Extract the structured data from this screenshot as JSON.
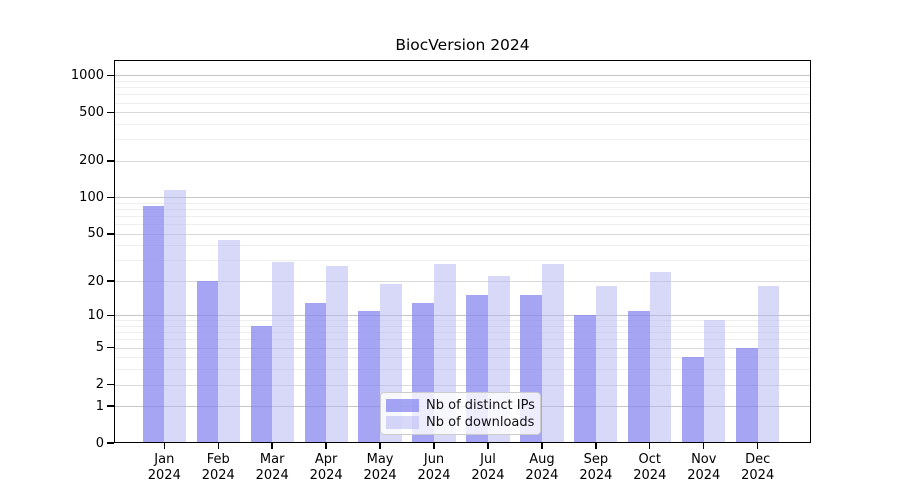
{
  "chart_data": {
    "type": "bar",
    "title": "BiocVersion 2024",
    "categories": [
      "Jan",
      "Feb",
      "Mar",
      "Apr",
      "May",
      "Jun",
      "Jul",
      "Aug",
      "Sep",
      "Oct",
      "Nov",
      "Dec"
    ],
    "year": "2024",
    "series": [
      {
        "name": "Nb of distinct IPs",
        "color": "rgba(130,130,240,0.72)",
        "color_over_white": "#a8a8f5",
        "values": [
          85,
          20,
          8,
          13,
          11,
          13,
          15,
          15,
          10,
          11,
          4,
          5
        ]
      },
      {
        "name": "Nb of downloads",
        "color": "rgba(177,177,243,0.5)",
        "color_over_white": "#d9d9f9",
        "values": [
          115,
          44,
          29,
          27,
          19,
          28,
          22,
          28,
          18,
          24,
          9,
          18
        ]
      }
    ],
    "y_scale": "log10(1+x)",
    "y_ticks": [
      0,
      1,
      2,
      5,
      10,
      20,
      50,
      100,
      200,
      500,
      1000
    ],
    "y_decade_lines": [
      1,
      10,
      100,
      1000
    ],
    "y_minor_gridlines": [
      3,
      4,
      6,
      7,
      8,
      9,
      30,
      40,
      60,
      70,
      80,
      90,
      300,
      400,
      600,
      700,
      800,
      900
    ],
    "ylim": [
      0,
      1337
    ],
    "grid": true,
    "legend_position": "lower-center"
  }
}
